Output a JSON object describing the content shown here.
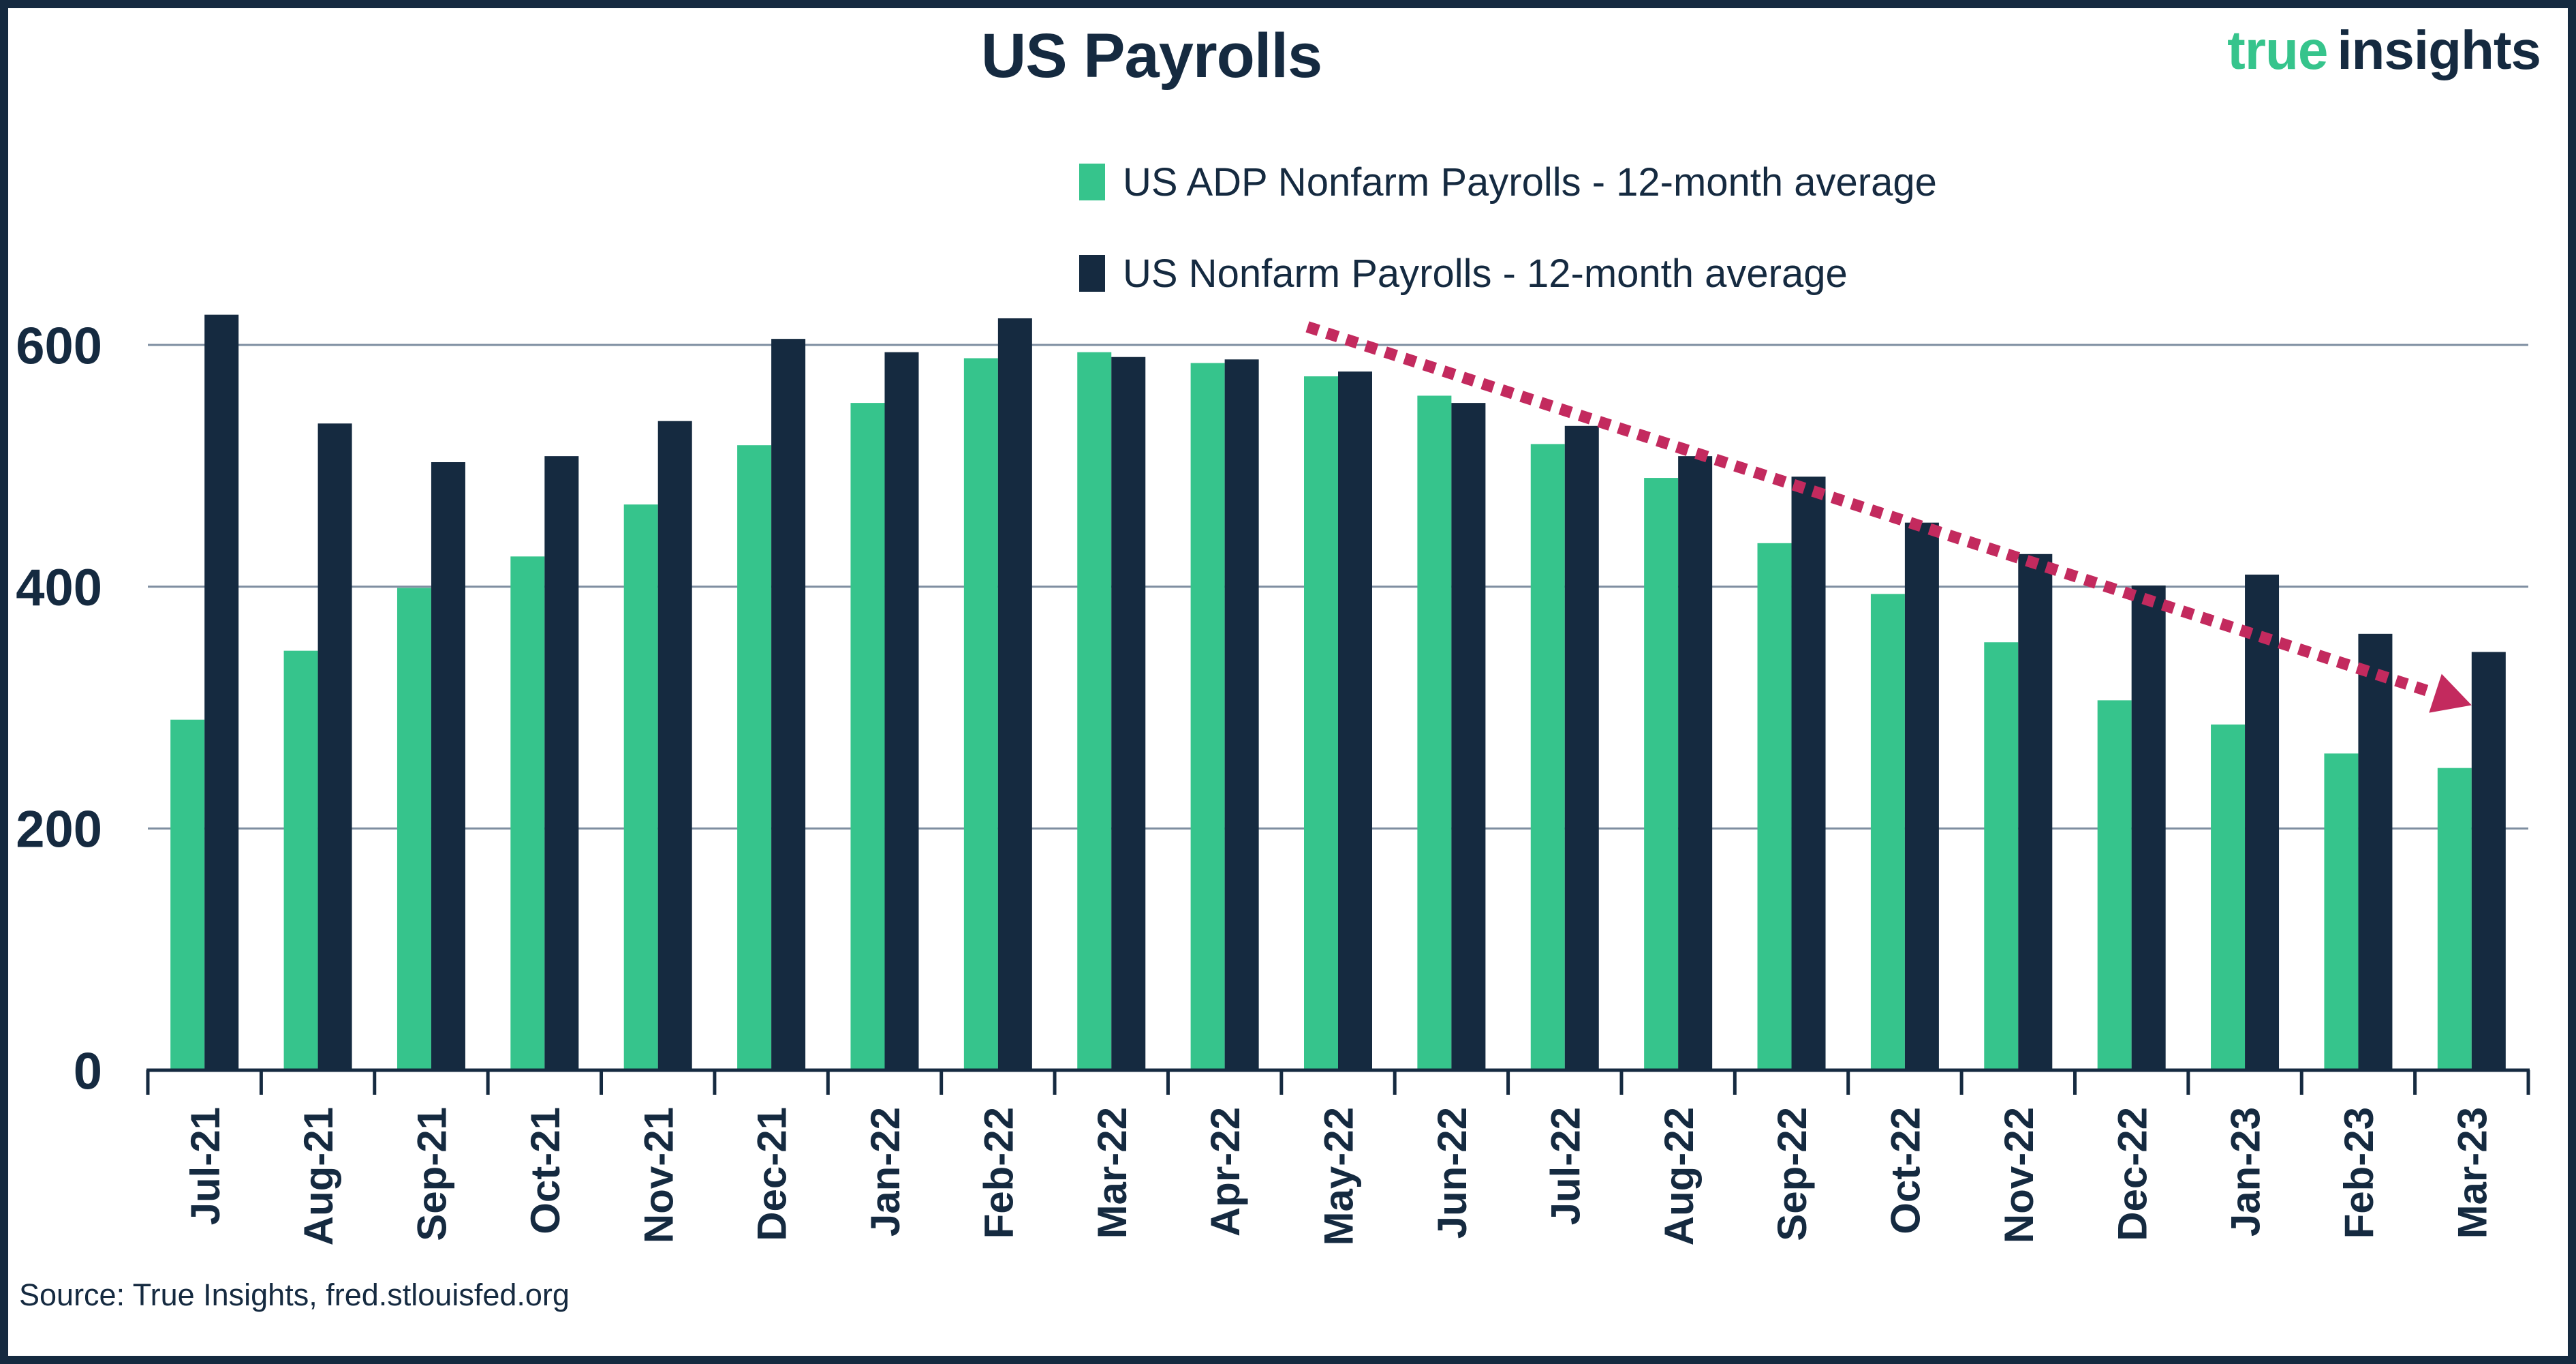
{
  "header": {
    "title": "US Payrolls"
  },
  "logo": {
    "word1": "true",
    "word2": "insights"
  },
  "legend": {
    "adp": "US ADP Nonfarm Payrolls - 12-month average",
    "nfp": "US Nonfarm Payrolls - 12-month average"
  },
  "footer": {
    "source": "Source: True Insights, fred.stlouisfed.org"
  },
  "colors": {
    "navy": "#152A40",
    "green": "#36C48C",
    "gridline": "#7E8EA0",
    "arrow": "#C32A5E",
    "background": "#FFFFFF"
  },
  "chart_data": {
    "type": "bar",
    "title": "US Payrolls",
    "categories": [
      "Jul-21",
      "Aug-21",
      "Sep-21",
      "Oct-21",
      "Nov-21",
      "Dec-21",
      "Jan-22",
      "Feb-22",
      "Mar-22",
      "Apr-22",
      "May-22",
      "Jun-22",
      "Jul-22",
      "Aug-22",
      "Sep-22",
      "Oct-22",
      "Nov-22",
      "Dec-22",
      "Jan-23",
      "Feb-23",
      "Mar-23"
    ],
    "series": [
      {
        "name": "US ADP Nonfarm Payrolls - 12-month average",
        "color": "#36C48C",
        "values": [
          290,
          347,
          399,
          425,
          468,
          517,
          552,
          589,
          594,
          585,
          574,
          558,
          518,
          490,
          436,
          394,
          354,
          306,
          286,
          262,
          250
        ]
      },
      {
        "name": "US Nonfarm Payrolls - 12-month average",
        "color": "#152A40",
        "values": [
          625,
          535,
          503,
          508,
          537,
          605,
          594,
          622,
          590,
          588,
          578,
          552,
          533,
          508,
          491,
          453,
          427,
          401,
          410,
          361,
          346
        ]
      }
    ],
    "xlabel": "",
    "ylabel": "",
    "ylim": [
      0,
      650
    ],
    "yticks": [
      0,
      200,
      400,
      600
    ],
    "grid": "horizontal",
    "legend_position": "top-center",
    "x_tick_rotation": 90,
    "annotations": {
      "trend_arrow": {
        "style": "dotted",
        "color": "#C32A5E",
        "from": {
          "month_index": 9.73,
          "value": 615
        },
        "to": {
          "month_index": 20.0,
          "value": 302
        }
      }
    }
  }
}
